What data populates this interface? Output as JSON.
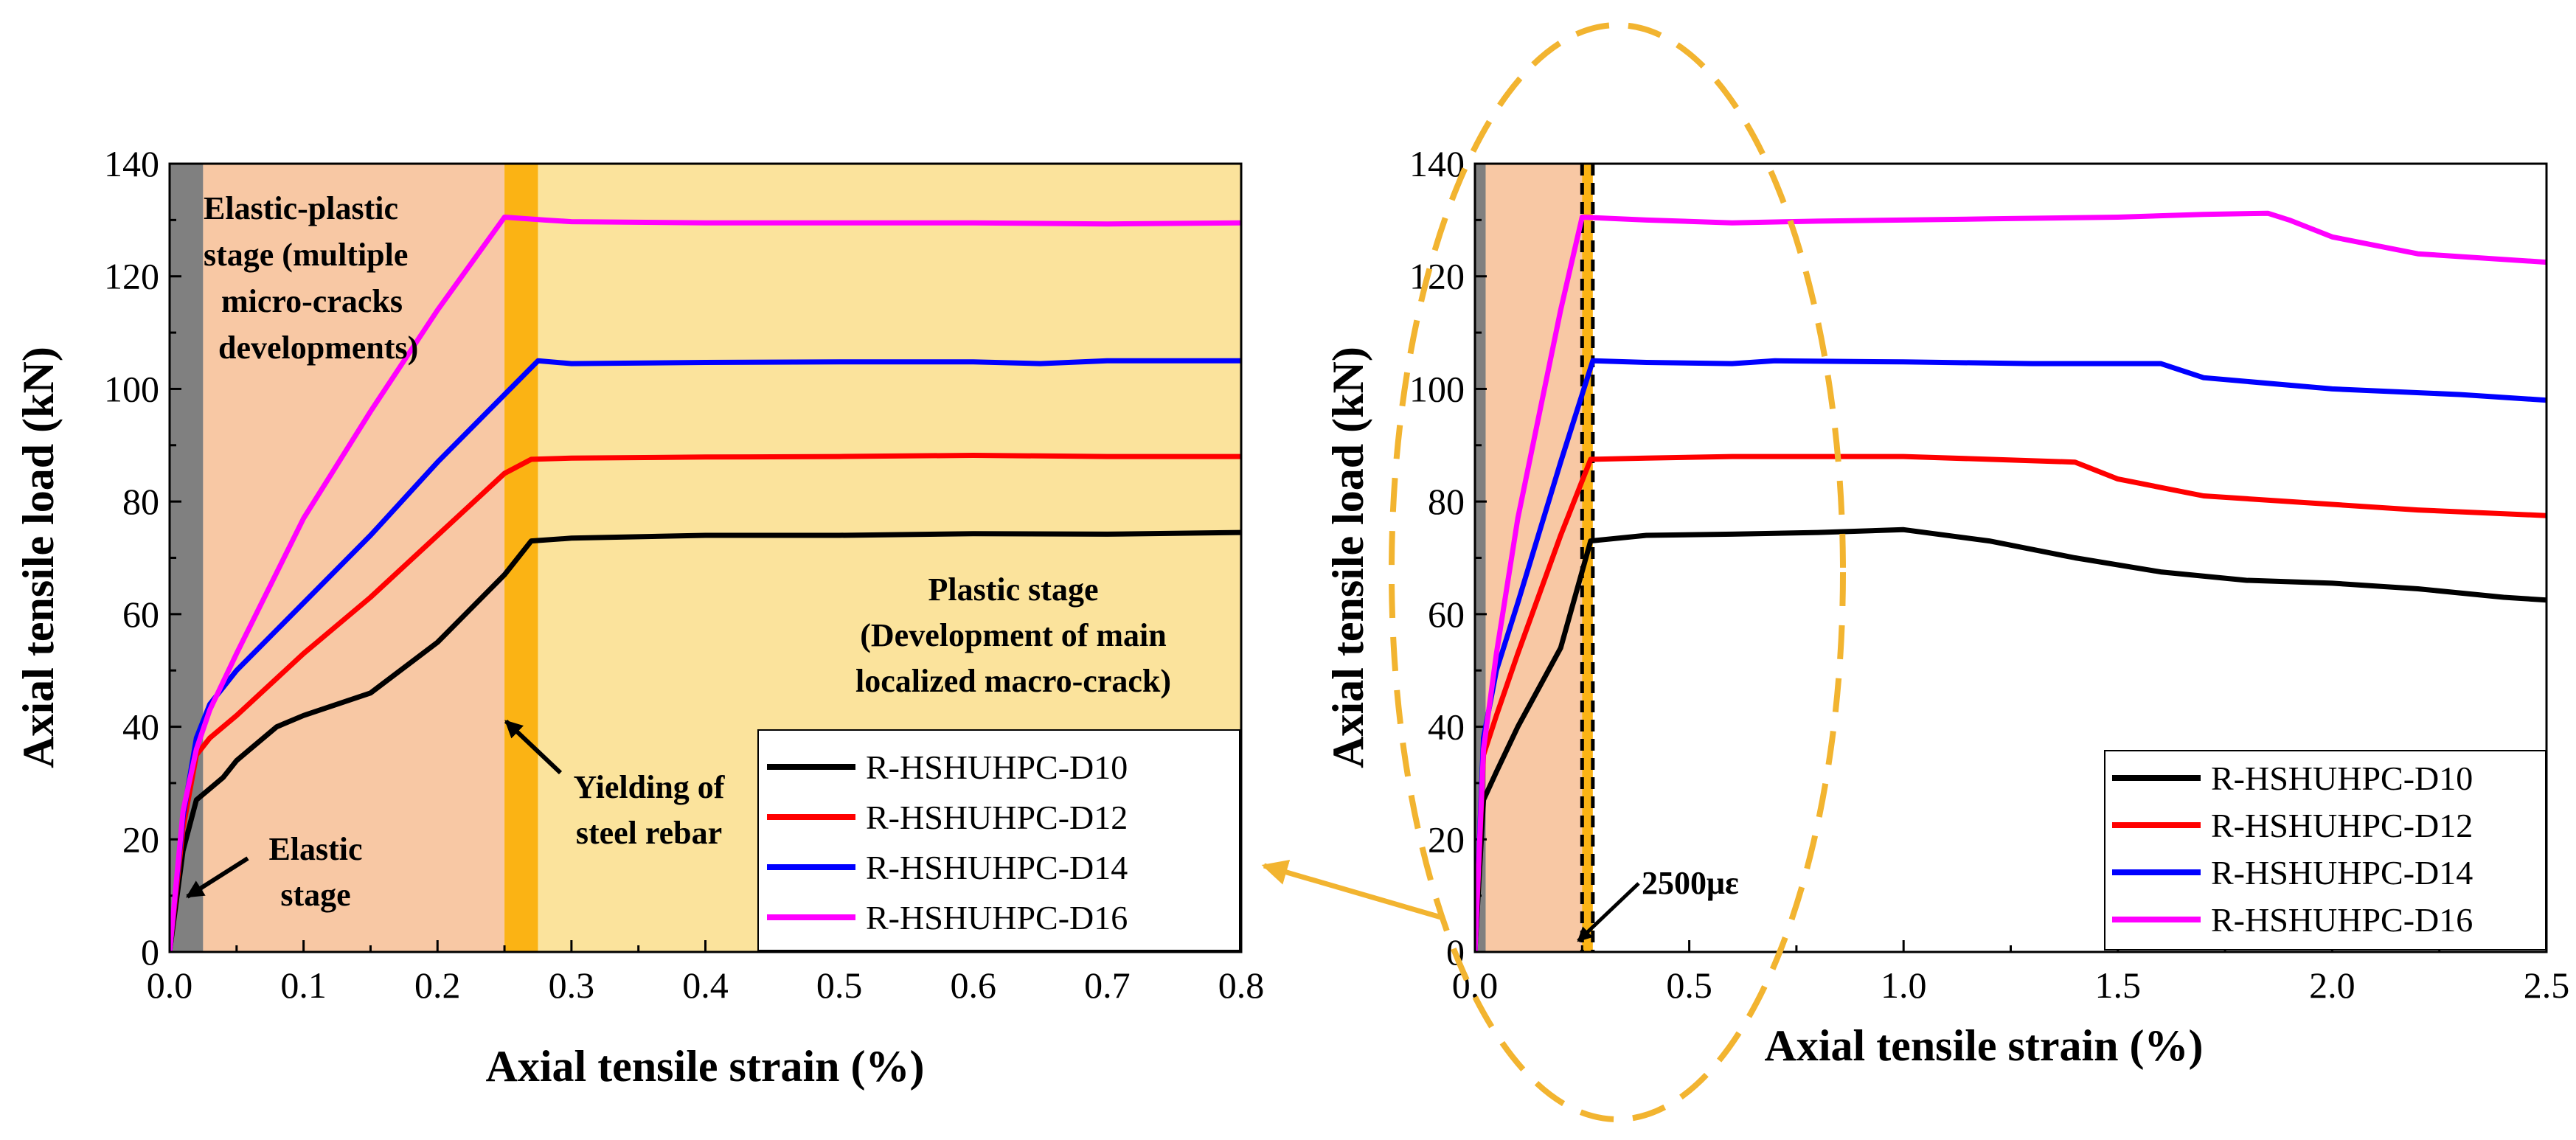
{
  "colors": {
    "D10": "#000000",
    "D12": "#ff0000",
    "D14": "#0000ff",
    "D16": "#ff00ff",
    "elastic_band": "#808080",
    "elastic_plastic_band": "#f8c8a4",
    "yield_band": "#fbb314",
    "plastic_band": "#fbe39c",
    "highlight": "#f2b430"
  },
  "chart_data": [
    {
      "type": "line",
      "xlabel": "Axial tensile strain (%)",
      "ylabel": "Axial tensile load (kN)",
      "xlim": [
        0.0,
        0.8
      ],
      "ylim": [
        0,
        140
      ],
      "x_ticks": [
        "0.0",
        "0.1",
        "0.2",
        "0.3",
        "0.4",
        "0.5",
        "0.6",
        "0.7",
        "0.8"
      ],
      "y_ticks": [
        "0",
        "20",
        "40",
        "60",
        "80",
        "100",
        "120",
        "140"
      ],
      "legend_position": "bottom-right",
      "stages": [
        {
          "name": "elastic",
          "from": 0.0,
          "to": 0.025
        },
        {
          "name": "elastic-plastic",
          "from": 0.025,
          "to": 0.25
        },
        {
          "name": "yield",
          "from": 0.25,
          "to": 0.275
        },
        {
          "name": "plastic",
          "from": 0.275,
          "to": 0.8
        }
      ],
      "annotations": {
        "elastic_plastic": [
          "Elastic-plastic",
          "stage (multiple",
          "micro-cracks",
          "developments)"
        ],
        "plastic": [
          "Plastic stage",
          "(Development of main",
          "localized macro-crack)"
        ],
        "yielding": [
          "Yielding of",
          "steel rebar"
        ],
        "elastic": [
          "Elastic",
          "stage"
        ]
      },
      "series": [
        {
          "name": "R-HSHUHPC-D10",
          "color": "#000000",
          "points": [
            [
              0,
              0
            ],
            [
              0.01,
              18
            ],
            [
              0.02,
              27
            ],
            [
              0.03,
              29
            ],
            [
              0.04,
              31
            ],
            [
              0.05,
              34
            ],
            [
              0.06,
              36
            ],
            [
              0.08,
              40
            ],
            [
              0.1,
              42
            ],
            [
              0.15,
              46
            ],
            [
              0.2,
              55
            ],
            [
              0.25,
              67
            ],
            [
              0.27,
              73
            ],
            [
              0.3,
              73.5
            ],
            [
              0.4,
              74
            ],
            [
              0.5,
              74
            ],
            [
              0.6,
              74.3
            ],
            [
              0.7,
              74.2
            ],
            [
              0.8,
              74.5
            ]
          ]
        },
        {
          "name": "R-HSHUHPC-D12",
          "color": "#ff0000",
          "points": [
            [
              0,
              0
            ],
            [
              0.01,
              22
            ],
            [
              0.02,
              35
            ],
            [
              0.03,
              38
            ],
            [
              0.05,
              42
            ],
            [
              0.1,
              53
            ],
            [
              0.15,
              63
            ],
            [
              0.2,
              74
            ],
            [
              0.25,
              85
            ],
            [
              0.27,
              87.5
            ],
            [
              0.3,
              87.7
            ],
            [
              0.4,
              87.9
            ],
            [
              0.5,
              88
            ],
            [
              0.6,
              88.2
            ],
            [
              0.7,
              88
            ],
            [
              0.8,
              88
            ]
          ]
        },
        {
          "name": "R-HSHUHPC-D14",
          "color": "#0000ff",
          "points": [
            [
              0,
              0
            ],
            [
              0.01,
              24
            ],
            [
              0.02,
              38
            ],
            [
              0.03,
              44
            ],
            [
              0.05,
              50
            ],
            [
              0.1,
              62
            ],
            [
              0.15,
              74
            ],
            [
              0.2,
              87
            ],
            [
              0.25,
              99
            ],
            [
              0.275,
              105
            ],
            [
              0.3,
              104.5
            ],
            [
              0.4,
              104.7
            ],
            [
              0.5,
              104.8
            ],
            [
              0.6,
              104.8
            ],
            [
              0.65,
              104.5
            ],
            [
              0.7,
              105
            ],
            [
              0.8,
              105
            ]
          ]
        },
        {
          "name": "R-HSHUHPC-D16",
          "color": "#ff00ff",
          "points": [
            [
              0,
              0
            ],
            [
              0.01,
              25
            ],
            [
              0.02,
              36
            ],
            [
              0.03,
              43
            ],
            [
              0.05,
              53
            ],
            [
              0.1,
              77
            ],
            [
              0.15,
              96
            ],
            [
              0.2,
              114
            ],
            [
              0.25,
              130.5
            ],
            [
              0.28,
              130
            ],
            [
              0.3,
              129.7
            ],
            [
              0.4,
              129.5
            ],
            [
              0.5,
              129.5
            ],
            [
              0.6,
              129.5
            ],
            [
              0.7,
              129.3
            ],
            [
              0.8,
              129.5
            ]
          ]
        }
      ]
    },
    {
      "type": "line",
      "xlabel": "Axial tensile strain (%)",
      "ylabel": "Axial tensile load (kN)",
      "xlim": [
        0.0,
        2.5
      ],
      "ylim": [
        0,
        140
      ],
      "x_ticks": [
        "0.0",
        "0.5",
        "1.0",
        "1.5",
        "2.0",
        "2.5"
      ],
      "y_ticks": [
        "0",
        "20",
        "40",
        "60",
        "80",
        "100",
        "120",
        "140"
      ],
      "legend_position": "bottom-right",
      "stages": [
        {
          "name": "elastic",
          "from": 0.0,
          "to": 0.025
        },
        {
          "name": "elastic-plastic",
          "from": 0.025,
          "to": 0.25
        },
        {
          "name": "yield",
          "from": 0.25,
          "to": 0.275
        }
      ],
      "annotation": "2500με",
      "series": [
        {
          "name": "R-HSHUHPC-D10",
          "color": "#000000",
          "points": [
            [
              0,
              0
            ],
            [
              0.02,
              27
            ],
            [
              0.05,
              32
            ],
            [
              0.1,
              40
            ],
            [
              0.2,
              54
            ],
            [
              0.27,
              73
            ],
            [
              0.4,
              74
            ],
            [
              0.6,
              74.2
            ],
            [
              0.8,
              74.5
            ],
            [
              1.0,
              75
            ],
            [
              1.2,
              73
            ],
            [
              1.4,
              70
            ],
            [
              1.6,
              67.5
            ],
            [
              1.8,
              66
            ],
            [
              2.0,
              65.5
            ],
            [
              2.2,
              64.5
            ],
            [
              2.4,
              63
            ],
            [
              2.5,
              62.5
            ]
          ]
        },
        {
          "name": "R-HSHUHPC-D12",
          "color": "#ff0000",
          "points": [
            [
              0,
              0
            ],
            [
              0.02,
              35
            ],
            [
              0.05,
              42
            ],
            [
              0.1,
              53
            ],
            [
              0.2,
              74
            ],
            [
              0.27,
              87.5
            ],
            [
              0.4,
              87.7
            ],
            [
              0.6,
              88
            ],
            [
              0.8,
              88
            ],
            [
              1.0,
              88
            ],
            [
              1.2,
              87.5
            ],
            [
              1.4,
              87
            ],
            [
              1.5,
              84
            ],
            [
              1.7,
              81
            ],
            [
              2.0,
              79.5
            ],
            [
              2.2,
              78.5
            ],
            [
              2.5,
              77.5
            ]
          ]
        },
        {
          "name": "R-HSHUHPC-D14",
          "color": "#0000ff",
          "points": [
            [
              0,
              0
            ],
            [
              0.02,
              38
            ],
            [
              0.05,
              50
            ],
            [
              0.1,
              62
            ],
            [
              0.2,
              87
            ],
            [
              0.275,
              105
            ],
            [
              0.4,
              104.7
            ],
            [
              0.6,
              104.5
            ],
            [
              0.7,
              105
            ],
            [
              1.0,
              104.8
            ],
            [
              1.3,
              104.5
            ],
            [
              1.6,
              104.5
            ],
            [
              1.7,
              102
            ],
            [
              2.0,
              100
            ],
            [
              2.3,
              99
            ],
            [
              2.5,
              98
            ]
          ]
        },
        {
          "name": "R-HSHUHPC-D16",
          "color": "#ff00ff",
          "points": [
            [
              0,
              0
            ],
            [
              0.02,
              36
            ],
            [
              0.05,
              53
            ],
            [
              0.1,
              77
            ],
            [
              0.2,
              114
            ],
            [
              0.25,
              130.5
            ],
            [
              0.4,
              130
            ],
            [
              0.6,
              129.5
            ],
            [
              0.8,
              129.8
            ],
            [
              1.0,
              130
            ],
            [
              1.2,
              130.2
            ],
            [
              1.5,
              130.5
            ],
            [
              1.7,
              131
            ],
            [
              1.85,
              131.2
            ],
            [
              1.9,
              130
            ],
            [
              2.0,
              127
            ],
            [
              2.2,
              124
            ],
            [
              2.5,
              122.5
            ]
          ]
        }
      ]
    }
  ]
}
